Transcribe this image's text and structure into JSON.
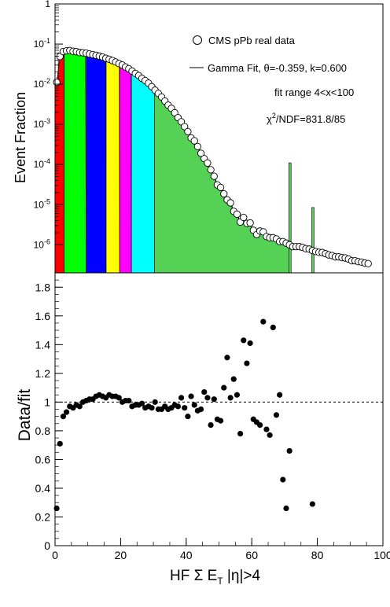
{
  "chart_data": [
    {
      "type": "area",
      "panel": "top",
      "ylabel": "Event Fraction",
      "yscale": "log",
      "xlim": [
        0,
        100
      ],
      "ylim": [
        2e-07,
        1
      ],
      "y_ticks": [
        {
          "value": 1,
          "label": "1"
        },
        {
          "value": 0.1,
          "base": "10",
          "exp": "-1"
        },
        {
          "value": 0.01,
          "base": "10",
          "exp": "-2"
        },
        {
          "value": 0.001,
          "base": "10",
          "exp": "-3"
        },
        {
          "value": 0.0001,
          "base": "10",
          "exp": "-4"
        },
        {
          "value": 1e-05,
          "base": "10",
          "exp": "-5"
        },
        {
          "value": 1e-06,
          "base": "10",
          "exp": "-6"
        }
      ],
      "centrality_bands": [
        {
          "x0": 0.0,
          "x1": 2.8,
          "color": "#ff0000"
        },
        {
          "x0": 2.8,
          "x1": 9.5,
          "color": "#00ff00"
        },
        {
          "x0": 9.5,
          "x1": 15.6,
          "color": "#0000ff"
        },
        {
          "x0": 15.6,
          "x1": 19.7,
          "color": "#ffff00"
        },
        {
          "x0": 19.7,
          "x1": 23.3,
          "color": "#ff00ff"
        },
        {
          "x0": 23.3,
          "x1": 30.3,
          "color": "#00ffff"
        },
        {
          "x0": 30.3,
          "x1": 72.0,
          "color": "#55d155"
        }
      ],
      "data_points": {
        "x": [
          0.5,
          1.5,
          2.5,
          3.5,
          4.5,
          5.5,
          6.5,
          7.5,
          8.5,
          9.5,
          10.5,
          11.5,
          12.5,
          13.5,
          14.5,
          15.5,
          16.5,
          17.5,
          18.5,
          19.5,
          20.5,
          21.5,
          22.5,
          23.5,
          24.5,
          25.5,
          26.5,
          27.5,
          28.5,
          29.5,
          30.5,
          31.5,
          32.5,
          33.5,
          34.5,
          35.5,
          36.5,
          37.5,
          38.5,
          39.5,
          40.5,
          41.5,
          42.5,
          43.5,
          44.5,
          45.5,
          46.5,
          47.5,
          48.5,
          49.5,
          50.5,
          51.5,
          52.5,
          53.5,
          54.5,
          55.5,
          56.5,
          57.5,
          58.5,
          59.5,
          60.5,
          61.5,
          62.5,
          63.5,
          64.5,
          65.5,
          66.5,
          67.5,
          68.5,
          69.5,
          70.5,
          71.5,
          72.5,
          73.5,
          74.5,
          75.5,
          76.5,
          77.5,
          78.5,
          79.5,
          80.5,
          81.5,
          82.5,
          83.5,
          84.5,
          85.5,
          86.5,
          87.5,
          88.5,
          89.5,
          90.5,
          91.5,
          92.5,
          93.5,
          94.5,
          95.5
        ],
        "y": [
          0.0112,
          0.0491,
          0.0652,
          0.0679,
          0.0692,
          0.0661,
          0.0648,
          0.0615,
          0.0609,
          0.0592,
          0.0566,
          0.0547,
          0.0525,
          0.0502,
          0.0476,
          0.0443,
          0.0418,
          0.0388,
          0.0357,
          0.0327,
          0.0301,
          0.0269,
          0.0243,
          0.0213,
          0.0186,
          0.0164,
          0.014,
          0.0123,
          0.0106,
          0.0087,
          0.0071,
          0.0059,
          0.0048,
          0.0038,
          0.003,
          0.0025,
          0.00194,
          0.00147,
          0.00116,
          0.00088,
          0.00066,
          0.00046,
          0.00039,
          0.00028,
          0.00019,
          0.00014,
          0.000109,
          7.4e-05,
          5.1e-05,
          3.1e-05,
          2.68e-05,
          1.86e-05,
          1.32e-05,
          1.11e-05,
          6.8e-06,
          5.8e-06,
          3.7e-06,
          4.8e-06,
          3.4e-06,
          3.5e-06,
          2.3e-06,
          1.8e-06,
          2.2e-06,
          2.1e-06,
          1.6e-06,
          1.5e-06,
          1.5e-06,
          1.4e-06,
          1.2e-06,
          1.2e-06,
          1.1e-06,
          1e-06,
          9e-07,
          9e-07,
          9e-07,
          8.6e-07,
          8e-07,
          7.8e-07,
          7.2e-07,
          6.8e-07,
          6.5e-07,
          6.4e-07,
          6e-07,
          5.6e-07,
          5.4e-07,
          5e-07,
          5e-07,
          4.8e-07,
          4.7e-07,
          4.4e-07,
          4e-07,
          4e-07,
          3.8e-07,
          3.7e-07,
          3.5e-07,
          3.4e-07
        ]
      },
      "legend": {
        "placement": "top-right",
        "data_label": "CMS pPb real data",
        "fit_label": "Gamma Fit, θ=-0.359, k=0.600",
        "fit_range": "fit range 4<x<100",
        "chi2_symbol": "χ",
        "chi2_exp": "2",
        "chi2_rest": "/NDF=831.8/85"
      }
    },
    {
      "type": "scatter",
      "panel": "bottom",
      "ylabel": "Data/fit",
      "xlabel_parts": {
        "pre": "HF Σ E",
        "sub": "T",
        "post": " |η|>4"
      },
      "xlim": [
        0,
        100
      ],
      "ylim": [
        0,
        1.9
      ],
      "x_ticks": [
        0,
        20,
        40,
        60,
        80,
        100
      ],
      "y_ticks": [
        0,
        0.2,
        0.4,
        0.6,
        0.8,
        1,
        1.2,
        1.4,
        1.6,
        1.8
      ],
      "reference_line": 1,
      "points": [
        [
          0.5,
          0.26
        ],
        [
          1.5,
          0.71
        ],
        [
          2.5,
          0.9
        ],
        [
          3.5,
          0.93
        ],
        [
          4.5,
          0.97
        ],
        [
          5.5,
          0.96
        ],
        [
          6.5,
          0.98
        ],
        [
          7.5,
          0.97
        ],
        [
          8.5,
          1.0
        ],
        [
          9.5,
          1.01
        ],
        [
          10.5,
          1.02
        ],
        [
          11.5,
          1.02
        ],
        [
          12.5,
          1.04
        ],
        [
          13.5,
          1.05
        ],
        [
          14.5,
          1.04
        ],
        [
          15.5,
          1.03
        ],
        [
          16.5,
          1.05
        ],
        [
          17.5,
          1.04
        ],
        [
          18.5,
          1.04
        ],
        [
          19.5,
          1.03
        ],
        [
          20.5,
          1.0
        ],
        [
          21.5,
          1.01
        ],
        [
          22.5,
          1.01
        ],
        [
          23.5,
          0.97
        ],
        [
          24.5,
          0.98
        ],
        [
          25.5,
          0.98
        ],
        [
          26.5,
          0.99
        ],
        [
          27.5,
          0.96
        ],
        [
          28.5,
          0.97
        ],
        [
          29.5,
          0.96
        ],
        [
          30.5,
          1.0
        ],
        [
          31.5,
          0.95
        ],
        [
          32.5,
          0.95
        ],
        [
          33.5,
          0.97
        ],
        [
          34.5,
          0.95
        ],
        [
          35.5,
          0.96
        ],
        [
          36.5,
          0.98
        ],
        [
          37.5,
          0.97
        ],
        [
          38.5,
          1.03
        ],
        [
          39.5,
          0.96
        ],
        [
          40.5,
          0.9
        ],
        [
          41.5,
          1.04
        ],
        [
          42.5,
          0.98
        ],
        [
          43.5,
          0.94
        ],
        [
          44.5,
          0.95
        ],
        [
          45.5,
          1.07
        ],
        [
          46.5,
          1.03
        ],
        [
          47.5,
          0.84
        ],
        [
          48.5,
          1.02
        ],
        [
          49.5,
          0.88
        ],
        [
          50.5,
          0.87
        ],
        [
          51.5,
          1.1
        ],
        [
          52.5,
          1.31
        ],
        [
          53.5,
          1.03
        ],
        [
          54.5,
          1.16
        ],
        [
          55.5,
          1.05
        ],
        [
          56.5,
          0.78
        ],
        [
          57.5,
          1.43
        ],
        [
          58.5,
          1.27
        ],
        [
          59.5,
          1.41
        ],
        [
          60.5,
          0.88
        ],
        [
          61.5,
          0.86
        ],
        [
          62.5,
          0.84
        ],
        [
          63.5,
          1.56
        ],
        [
          64.5,
          0.81
        ],
        [
          65.5,
          0.77
        ],
        [
          66.5,
          1.52
        ],
        [
          67.5,
          0.91
        ],
        [
          68.5,
          1.05
        ],
        [
          69.5,
          0.46
        ],
        [
          70.5,
          0.26
        ],
        [
          71.5,
          0.66
        ],
        [
          78.5,
          0.29
        ]
      ]
    }
  ]
}
